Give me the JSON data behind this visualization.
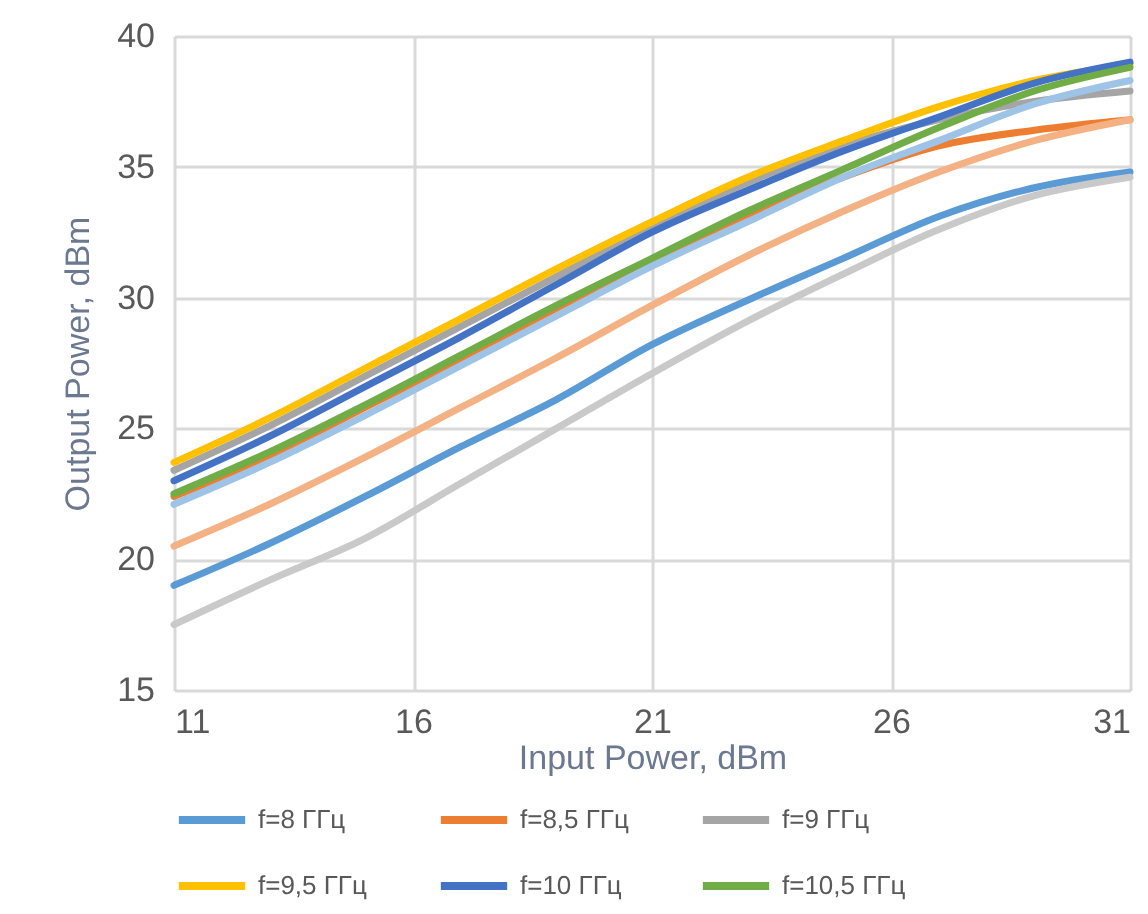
{
  "chart_data": {
    "type": "line",
    "xlabel": "Input Power, dBm",
    "ylabel": "Output Power, dBm",
    "x": [
      11,
      13,
      15,
      17,
      19,
      21,
      23,
      25,
      27,
      29,
      31
    ],
    "xlim": [
      11,
      31
    ],
    "xticks": [
      11,
      16,
      21,
      26,
      31
    ],
    "ylim": [
      15,
      40
    ],
    "yticks": [
      15,
      20,
      25,
      30,
      35,
      40
    ],
    "grid": true,
    "legend": "bottom",
    "marker": "none",
    "line_style": "solid",
    "series": [
      {
        "name": "f=8 ГГц",
        "color": "#5b9bd5",
        "values": [
          19.0,
          20.6,
          22.4,
          24.3,
          26.1,
          28.2,
          29.9,
          31.5,
          33.1,
          34.2,
          34.8
        ]
      },
      {
        "name": "f=8,5 ГГц",
        "color": "#ed7d31",
        "values": [
          22.4,
          23.9,
          25.8,
          27.6,
          29.5,
          31.4,
          33.1,
          34.6,
          35.8,
          36.4,
          36.8
        ]
      },
      {
        "name": "f=9 ГГц",
        "color": "#a5a5a5",
        "values": [
          23.4,
          25.1,
          27.0,
          28.9,
          30.8,
          32.7,
          34.4,
          35.8,
          36.8,
          37.5,
          37.9
        ]
      },
      {
        "name": "f=9,5 ГГц",
        "color": "#ffc000",
        "values": [
          23.7,
          25.4,
          27.3,
          29.2,
          31.1,
          32.9,
          34.6,
          36.0,
          37.3,
          38.3,
          38.9
        ]
      },
      {
        "name": "f=10 ГГц",
        "color": "#4472c4",
        "values": [
          23.0,
          24.7,
          26.6,
          28.5,
          30.5,
          32.5,
          34.1,
          35.6,
          36.9,
          38.2,
          39.0
        ]
      },
      {
        "name": "f=10,5 ГГц",
        "color": "#70ad47",
        "values": [
          22.5,
          24.1,
          25.9,
          27.8,
          29.7,
          31.5,
          33.3,
          34.9,
          36.5,
          37.9,
          38.8
        ]
      },
      {
        "color": "#9dc3e6",
        "values": [
          22.1,
          23.7,
          25.5,
          27.4,
          29.3,
          31.2,
          32.9,
          34.6,
          36.0,
          37.4,
          38.3
        ]
      },
      {
        "color": "#f4b183",
        "values": [
          20.5,
          22.1,
          23.9,
          25.8,
          27.7,
          29.7,
          31.6,
          33.3,
          34.8,
          36.0,
          36.8
        ]
      },
      {
        "color": "#c9c9c9",
        "values": [
          17.5,
          19.2,
          20.8,
          22.9,
          25.0,
          27.1,
          29.1,
          30.9,
          32.6,
          33.9,
          34.6
        ]
      }
    ]
  }
}
